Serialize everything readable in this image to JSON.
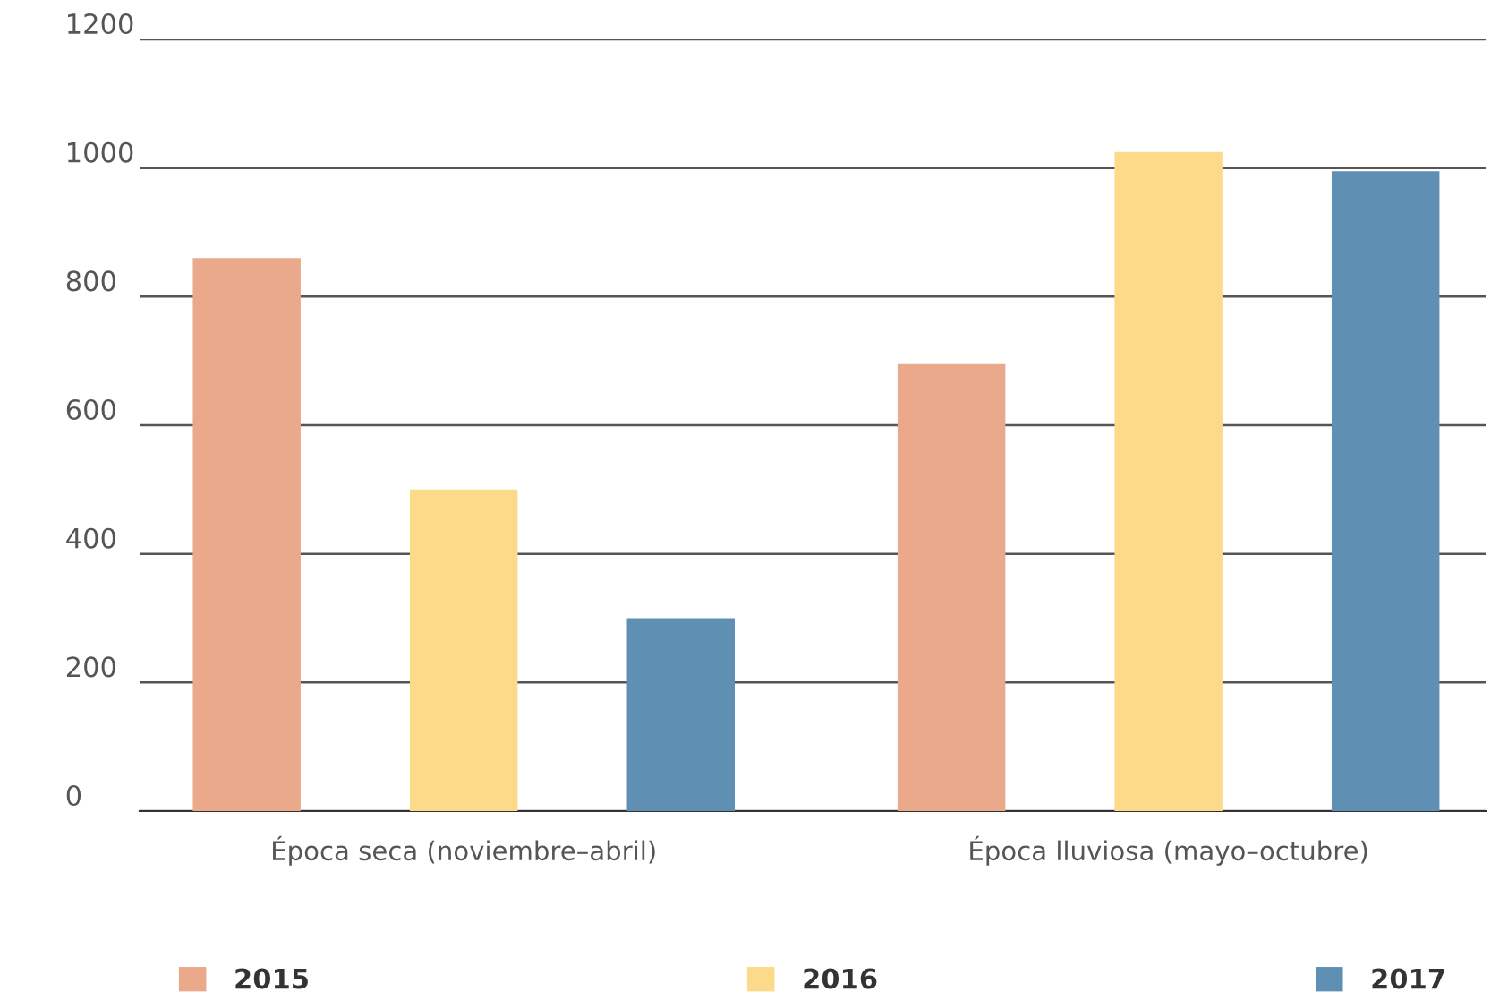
{
  "chart_data": {
    "type": "bar",
    "categories": [
      "Época seca (noviembre–abril)",
      "Época lluviosa (mayo–octubre)"
    ],
    "series": [
      {
        "name": "2015",
        "color": "#eaa98b",
        "values": [
          860,
          695
        ]
      },
      {
        "name": "2016",
        "color": "#fdd98a",
        "values": [
          500,
          1025
        ]
      },
      {
        "name": "2017",
        "color": "#608fb4",
        "values": [
          300,
          995
        ]
      }
    ],
    "ylim": [
      0,
      1200
    ],
    "yticks": [
      0,
      200,
      400,
      600,
      800,
      1000,
      1200
    ],
    "grid": "y",
    "legend": "bottom"
  }
}
